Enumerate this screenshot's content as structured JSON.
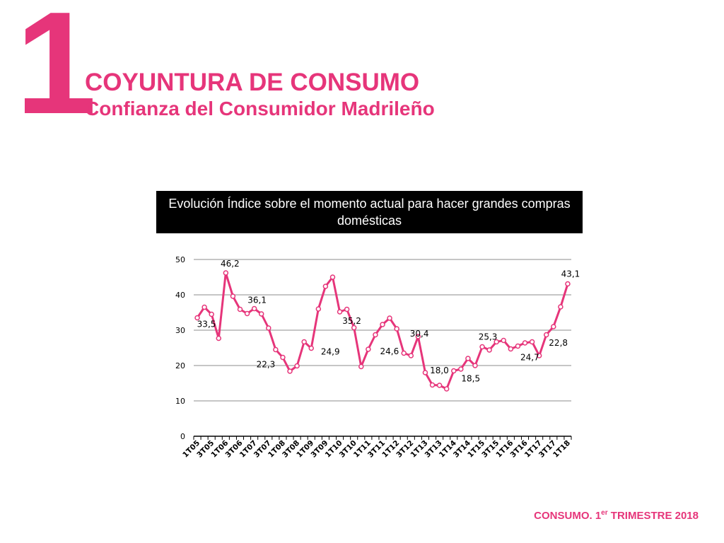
{
  "header": {
    "number": "1",
    "title": "COYUNTURA DE CONSUMO",
    "subtitle": "Confianza del Consumidor Madrileño"
  },
  "footer": {
    "text": "CONSUMO. 1",
    "sup": "er",
    "text_end": " TRIMESTRE 2018"
  },
  "colors": {
    "accent": "#e6357a",
    "title_bg": "#000000"
  },
  "chart_data": {
    "type": "line",
    "title": "Evolución Índice sobre el momento actual para hacer grandes compras domésticas",
    "xlabel": "",
    "ylabel": "",
    "ylim": [
      0,
      50
    ],
    "yticks": [
      0,
      10,
      20,
      30,
      40,
      50
    ],
    "grid": true,
    "categories": [
      "1T05",
      "2T05",
      "3T05",
      "4T05",
      "1T06",
      "2T06",
      "3T06",
      "4T06",
      "1T07",
      "2T07",
      "3T07",
      "4T07",
      "1T08",
      "2T08",
      "3T08",
      "4T08",
      "1T09",
      "2T09",
      "3T09",
      "4T09",
      "1T10",
      "2T10",
      "3T10",
      "4T10",
      "1T11",
      "2T11",
      "3T11",
      "4T11",
      "1T12",
      "2T12",
      "3T12",
      "4T12",
      "1T13",
      "2T13",
      "3T13",
      "4T13",
      "1T14",
      "2T14",
      "3T14",
      "4T14",
      "1T15",
      "2T15",
      "3T15",
      "4T15",
      "1T16",
      "2T16",
      "3T16",
      "4T16",
      "1T17",
      "2T17",
      "3T17",
      "4T17",
      "1T18"
    ],
    "tick_labels": [
      "1T05",
      "3T05",
      "1T06",
      "3T06",
      "1T07",
      "3T07",
      "1T08",
      "3T08",
      "1T09",
      "3T09",
      "1T10",
      "3T10",
      "1T11",
      "3T11",
      "1T12",
      "3T12",
      "1T13",
      "3T13",
      "1T14",
      "3T14",
      "1T15",
      "3T15",
      "1T16",
      "3T16",
      "1T17",
      "3T17",
      "1T18"
    ],
    "series": [
      {
        "color": "#e6357a",
        "values": [
          33.5,
          36.5,
          34.5,
          27.7,
          46.2,
          39.6,
          35.9,
          34.7,
          36.1,
          34.6,
          30.6,
          24.5,
          22.3,
          18.4,
          19.9,
          26.7,
          24.9,
          36.0,
          42.4,
          45.0,
          35.2,
          35.9,
          30.7,
          19.7,
          24.6,
          28.7,
          31.6,
          33.4,
          30.4,
          23.5,
          22.8,
          28.2,
          18.0,
          14.5,
          14.4,
          13.4,
          18.5,
          19.0,
          22.0,
          20.0,
          25.3,
          24.4,
          26.7,
          27.1,
          24.7,
          25.5,
          26.4,
          26.7,
          22.8,
          28.7,
          31.0,
          36.6,
          43.1
        ]
      }
    ],
    "data_labels": [
      {
        "index": 0,
        "text": "33,5"
      },
      {
        "index": 4,
        "text": "46,2"
      },
      {
        "index": 8,
        "text": "36,1"
      },
      {
        "index": 12,
        "text": "22,3"
      },
      {
        "index": 16,
        "text": "24,9"
      },
      {
        "index": 20,
        "text": "35,2"
      },
      {
        "index": 24,
        "text": "24,6"
      },
      {
        "index": 28,
        "text": "30,4"
      },
      {
        "index": 32,
        "text": "18,0"
      },
      {
        "index": 36,
        "text": "18,5"
      },
      {
        "index": 40,
        "text": "25,3"
      },
      {
        "index": 44,
        "text": "24,7"
      },
      {
        "index": 48,
        "text": "22,8"
      },
      {
        "index": 52,
        "text": "43,1"
      }
    ]
  }
}
